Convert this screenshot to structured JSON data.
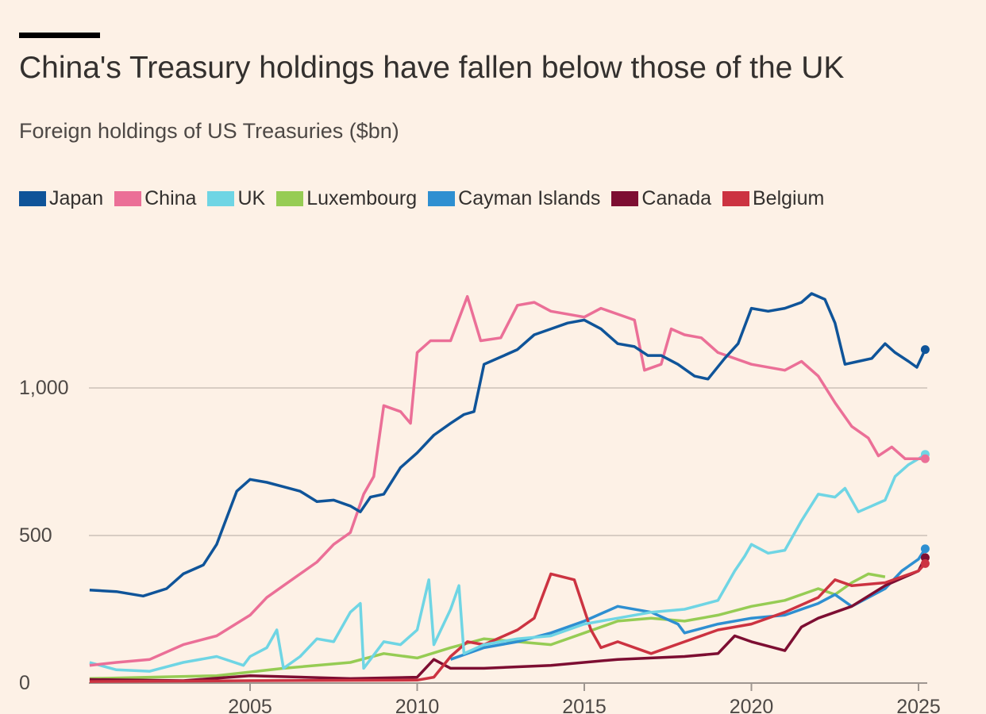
{
  "title": "China's Treasury holdings have fallen below those of the UK",
  "subtitle": "Foreign holdings of US Treasuries ($bn)",
  "chart_data": {
    "type": "line",
    "title": "China's Treasury holdings have fallen below those of the UK",
    "subtitle": "Foreign holdings of US Treasuries ($bn)",
    "xlabel": "",
    "ylabel": "$bn",
    "xlim": [
      2000.2,
      2025.3
    ],
    "ylim": [
      0,
      1400
    ],
    "yticks": [
      {
        "value": 0,
        "label": "0"
      },
      {
        "value": 500,
        "label": "500"
      },
      {
        "value": 1000,
        "label": "1,000"
      }
    ],
    "xticks": [
      {
        "value": 2005,
        "label": "2005"
      },
      {
        "value": 2010,
        "label": "2010"
      },
      {
        "value": 2015,
        "label": "2015"
      },
      {
        "value": 2020,
        "label": "2020"
      },
      {
        "value": 2025,
        "label": "2025"
      }
    ],
    "grid": true,
    "legend": "top-left",
    "series": [
      {
        "name": "Japan",
        "color": "#0f5499",
        "end_dot": true,
        "x": [
          2000.2,
          2001,
          2001.8,
          2002.5,
          2003,
          2003.6,
          2004,
          2004.6,
          2005,
          2005.5,
          2006,
          2006.5,
          2007,
          2007.5,
          2008,
          2008.3,
          2008.6,
          2009,
          2009.5,
          2010,
          2010.5,
          2011,
          2011.4,
          2011.7,
          2012,
          2012.6,
          2013,
          2013.5,
          2014,
          2014.5,
          2015,
          2015.5,
          2016,
          2016.5,
          2016.9,
          2017.3,
          2017.8,
          2018.3,
          2018.7,
          2019.2,
          2019.6,
          2020,
          2020.5,
          2021,
          2021.5,
          2021.8,
          2022.2,
          2022.5,
          2022.8,
          2023.2,
          2023.6,
          2024,
          2024.3,
          2024.7,
          2024.95,
          2025.2
        ],
        "y": [
          315,
          310,
          295,
          320,
          370,
          400,
          470,
          650,
          690,
          680,
          665,
          650,
          615,
          620,
          600,
          580,
          630,
          640,
          730,
          780,
          840,
          880,
          910,
          920,
          1080,
          1110,
          1130,
          1180,
          1200,
          1220,
          1230,
          1200,
          1150,
          1140,
          1110,
          1110,
          1080,
          1040,
          1030,
          1100,
          1150,
          1270,
          1260,
          1270,
          1290,
          1320,
          1300,
          1220,
          1080,
          1090,
          1100,
          1150,
          1120,
          1090,
          1070,
          1130
        ]
      },
      {
        "name": "China",
        "color": "#eb6f97",
        "end_dot": true,
        "x": [
          2000.2,
          2001,
          2002,
          2003,
          2004,
          2005,
          2005.5,
          2006,
          2007,
          2007.5,
          2008,
          2008.4,
          2008.7,
          2009,
          2009.5,
          2009.8,
          2010,
          2010.4,
          2011,
          2011.5,
          2011.9,
          2012.5,
          2013,
          2013.5,
          2014,
          2015,
          2015.5,
          2016,
          2016.5,
          2016.8,
          2017.3,
          2017.6,
          2018,
          2018.5,
          2019,
          2020,
          2021,
          2021.5,
          2022,
          2022.5,
          2023,
          2023.5,
          2023.8,
          2024.2,
          2024.6,
          2025.2
        ],
        "y": [
          60,
          70,
          80,
          130,
          160,
          230,
          290,
          330,
          410,
          470,
          510,
          640,
          700,
          940,
          920,
          880,
          1120,
          1160,
          1160,
          1310,
          1160,
          1170,
          1280,
          1290,
          1260,
          1240,
          1270,
          1250,
          1230,
          1060,
          1080,
          1200,
          1180,
          1170,
          1120,
          1080,
          1060,
          1090,
          1040,
          950,
          870,
          830,
          770,
          800,
          760,
          760
        ]
      },
      {
        "name": "UK",
        "color": "#6fd5e4",
        "end_dot": true,
        "x": [
          2000.2,
          2001,
          2002,
          2003,
          2004,
          2004.8,
          2005,
          2005.5,
          2005.8,
          2006,
          2006.5,
          2007,
          2007.5,
          2008,
          2008.3,
          2008.4,
          2009,
          2009.5,
          2010,
          2010.35,
          2010.5,
          2011,
          2011.25,
          2011.4,
          2012,
          2013,
          2014,
          2015,
          2016,
          2017,
          2018,
          2019,
          2019.5,
          2019.8,
          2020,
          2020.5,
          2021,
          2021.5,
          2022,
          2022.5,
          2022.8,
          2023.2,
          2023.6,
          2024,
          2024.3,
          2024.7,
          2025,
          2025.2
        ],
        "y": [
          70,
          45,
          40,
          70,
          90,
          60,
          90,
          120,
          180,
          50,
          90,
          150,
          140,
          240,
          270,
          50,
          140,
          130,
          180,
          350,
          130,
          250,
          330,
          100,
          130,
          150,
          160,
          200,
          220,
          240,
          250,
          280,
          380,
          430,
          470,
          440,
          450,
          550,
          640,
          630,
          660,
          580,
          600,
          620,
          700,
          740,
          760,
          775
        ]
      },
      {
        "name": "Luxembourg",
        "color": "#96cc54",
        "end_dot": false,
        "x": [
          2000.2,
          2002,
          2004,
          2006,
          2008,
          2009,
          2010,
          2011,
          2012,
          2013,
          2014,
          2015,
          2016,
          2017,
          2018,
          2019,
          2020,
          2021,
          2022,
          2022.5,
          2023,
          2023.5,
          2024
        ],
        "y": [
          15,
          20,
          25,
          50,
          70,
          100,
          85,
          120,
          150,
          140,
          130,
          170,
          210,
          220,
          210,
          230,
          260,
          280,
          320,
          300,
          340,
          370,
          360
        ]
      },
      {
        "name": "Cayman Islands",
        "color": "#2e8fd1",
        "end_dot": true,
        "x": [
          2011,
          2012,
          2013,
          2014,
          2015,
          2016,
          2017,
          2017.8,
          2018,
          2019,
          2020,
          2021,
          2022,
          2022.5,
          2023,
          2024,
          2024.5,
          2025,
          2025.2
        ],
        "y": [
          80,
          120,
          140,
          170,
          210,
          260,
          240,
          200,
          170,
          200,
          220,
          230,
          270,
          300,
          260,
          320,
          380,
          420,
          455
        ]
      },
      {
        "name": "Canada",
        "color": "#7d0e32",
        "end_dot": true,
        "x": [
          2000.2,
          2003,
          2005,
          2008,
          2010,
          2010.5,
          2011,
          2012,
          2014,
          2016,
          2018,
          2019,
          2019.5,
          2020,
          2021,
          2021.5,
          2022,
          2023,
          2024,
          2025,
          2025.2
        ],
        "y": [
          12,
          8,
          25,
          15,
          20,
          80,
          50,
          50,
          60,
          80,
          90,
          100,
          160,
          140,
          110,
          190,
          220,
          260,
          330,
          380,
          425
        ]
      },
      {
        "name": "Belgium",
        "color": "#cc3341",
        "end_dot": true,
        "x": [
          2000.2,
          2005,
          2010,
          2010.5,
          2011,
          2011.5,
          2012,
          2013,
          2013.5,
          2014,
          2014.7,
          2015.2,
          2015.5,
          2016,
          2017,
          2018,
          2019,
          2020,
          2021,
          2022,
          2022.5,
          2023,
          2024,
          2025,
          2025.2
        ],
        "y": [
          5,
          8,
          10,
          20,
          90,
          140,
          130,
          180,
          220,
          370,
          350,
          180,
          120,
          140,
          100,
          140,
          180,
          200,
          240,
          290,
          350,
          330,
          340,
          380,
          405
        ]
      }
    ]
  }
}
